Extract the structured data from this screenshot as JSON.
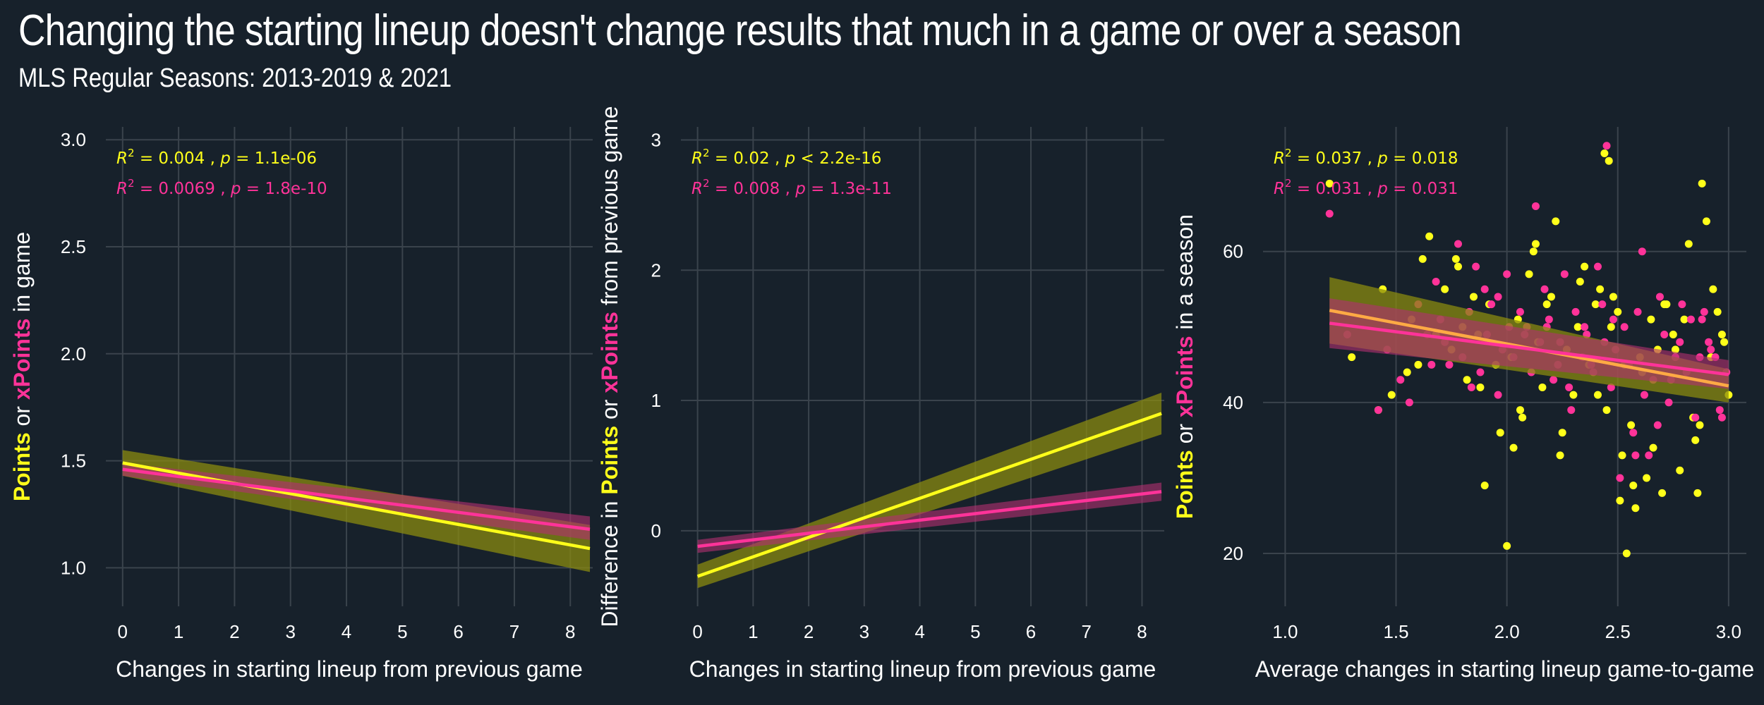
{
  "title": "Changing the starting lineup doesn't change results that much in a game or over a season",
  "subtitle": "MLS Regular Seasons: 2013-2019 & 2021",
  "colors": {
    "background": "#17212b",
    "grid": "#3a434c",
    "points": "#ffff1a",
    "xpoints": "#ff3399",
    "text": "#ffffff"
  },
  "chart_data": [
    {
      "type": "line",
      "xlabel": "Changes in starting lineup from previous game",
      "ylabel": {
        "part1": "Points",
        "part2": " or ",
        "part3": "xPoints",
        "part4": " in game"
      },
      "xlim": [
        -0.3,
        8.4
      ],
      "ylim": [
        0.82,
        3.06
      ],
      "xticks": [
        0,
        1,
        2,
        3,
        4,
        5,
        6,
        7,
        8
      ],
      "yticks": [
        1.0,
        1.5,
        2.0,
        2.5,
        3.0
      ],
      "ytick_labels": [
        "1.0",
        "1.5",
        "2.0",
        "2.5",
        "3.0"
      ],
      "annotations": [
        {
          "series": "points",
          "r2": "0.004",
          "p": "= 1.1e-06"
        },
        {
          "series": "xpoints",
          "r2": "0.0069",
          "p": "= 1.8e-10"
        }
      ],
      "series": [
        {
          "key": "points",
          "x": [
            0,
            8.35
          ],
          "y": [
            1.49,
            1.09
          ],
          "band_lower": [
            1.43,
            0.98
          ],
          "band_upper": [
            1.55,
            1.2
          ]
        },
        {
          "key": "xpoints",
          "x": [
            0,
            8.35
          ],
          "y": [
            1.46,
            1.18
          ],
          "band_lower": [
            1.43,
            1.13
          ],
          "band_upper": [
            1.49,
            1.24
          ]
        }
      ]
    },
    {
      "type": "line",
      "xlabel": "Changes in starting lineup from previous game",
      "ylabel": {
        "part1": "Difference in ",
        "part2": "Points",
        "part3": " or ",
        "part4": "xPoints",
        "part5": " from previous game"
      },
      "xlim": [
        -0.3,
        8.4
      ],
      "ylim": [
        -0.58,
        3.1
      ],
      "xticks": [
        0,
        1,
        2,
        3,
        4,
        5,
        6,
        7,
        8
      ],
      "yticks": [
        0,
        1,
        2,
        3
      ],
      "ytick_labels": [
        "0",
        "1",
        "2",
        "3"
      ],
      "annotations": [
        {
          "series": "points",
          "r2": "0.02",
          "p": "< 2.2e-16"
        },
        {
          "series": "xpoints",
          "r2": "0.008",
          "p": "= 1.3e-11"
        }
      ],
      "series": [
        {
          "key": "points",
          "x": [
            0,
            8.35
          ],
          "y": [
            -0.35,
            0.9
          ],
          "band_lower": [
            -0.44,
            0.74
          ],
          "band_upper": [
            -0.26,
            1.06
          ]
        },
        {
          "key": "xpoints",
          "x": [
            0,
            8.35
          ],
          "y": [
            -0.12,
            0.3
          ],
          "band_lower": [
            -0.17,
            0.23
          ],
          "band_upper": [
            -0.07,
            0.37
          ]
        }
      ]
    },
    {
      "type": "scatter",
      "xlabel": "Average changes in starting lineup game-to-game",
      "ylabel": {
        "part1": "Points",
        "part2": " or ",
        "part3": "xPoints",
        "part4": " in a season"
      },
      "xlim": [
        0.9,
        3.08
      ],
      "ylim": [
        13,
        76.5
      ],
      "xticks": [
        1.0,
        1.5,
        2.0,
        2.5,
        3.0
      ],
      "xtick_labels": [
        "1.0",
        "1.5",
        "2.0",
        "2.5",
        "3.0"
      ],
      "yticks": [
        20,
        40,
        60
      ],
      "ytick_labels": [
        "20",
        "40",
        "60"
      ],
      "annotations": [
        {
          "series": "points",
          "r2": "0.037",
          "p": "= 0.018"
        },
        {
          "series": "xpoints",
          "r2": "0.031",
          "p": "= 0.031"
        }
      ],
      "series": [
        {
          "key": "points",
          "x": [
            1.2,
            1.3,
            1.42,
            1.44,
            1.48,
            1.55,
            1.57,
            1.62,
            1.65,
            1.68,
            1.72,
            1.75,
            1.78,
            1.8,
            1.82,
            1.85,
            1.87,
            1.9,
            1.92,
            1.95,
            1.97,
            2.0,
            2.02,
            2.05,
            2.07,
            2.1,
            2.12,
            2.14,
            2.16,
            2.18,
            2.2,
            2.22,
            2.25,
            2.27,
            2.3,
            2.32,
            2.35,
            2.37,
            2.4,
            2.42,
            2.44,
            2.46,
            2.48,
            2.5,
            2.52,
            2.54,
            2.56,
            2.58,
            2.6,
            2.63,
            2.65,
            2.68,
            2.7,
            2.72,
            2.75,
            2.78,
            2.8,
            2.82,
            2.84,
            2.86,
            2.88,
            2.9,
            2.92,
            2.95,
            2.98,
            3.0,
            1.88,
            2.03,
            2.13,
            2.33,
            2.45,
            2.47,
            2.53,
            2.57,
            2.66,
            2.76,
            2.87,
            2.93,
            1.6,
            1.77,
            2.06,
            2.24,
            2.41,
            2.51,
            2.61,
            2.71,
            2.85,
            2.97
          ],
          "y": [
            69,
            46,
            39,
            55,
            41,
            44,
            51,
            59,
            62,
            49,
            55,
            47,
            58,
            50,
            43,
            54,
            49,
            29,
            53,
            45,
            36,
            21,
            46,
            51,
            38,
            57,
            60,
            48,
            42,
            53,
            54,
            64,
            36,
            47,
            41,
            50,
            58,
            45,
            53,
            55,
            73,
            72,
            54,
            52,
            33,
            20,
            37,
            26,
            46,
            30,
            51,
            47,
            28,
            53,
            49,
            31,
            51,
            61,
            38,
            28,
            69,
            64,
            46,
            52,
            48,
            41,
            42,
            34,
            61,
            56,
            39,
            50,
            45,
            29,
            34,
            47,
            37,
            55,
            45,
            59,
            39,
            33,
            41,
            27,
            44,
            53,
            35,
            49
          ]
        },
        {
          "key": "xpoints",
          "x": [
            1.2,
            1.28,
            1.42,
            1.46,
            1.52,
            1.56,
            1.6,
            1.64,
            1.68,
            1.7,
            1.74,
            1.78,
            1.8,
            1.83,
            1.86,
            1.88,
            1.91,
            1.93,
            1.96,
            1.98,
            2.01,
            2.03,
            2.06,
            2.08,
            2.11,
            2.13,
            2.15,
            2.17,
            2.19,
            2.21,
            2.24,
            2.26,
            2.29,
            2.31,
            2.34,
            2.36,
            2.39,
            2.41,
            2.43,
            2.45,
            2.47,
            2.49,
            2.51,
            2.53,
            2.55,
            2.57,
            2.59,
            2.61,
            2.64,
            2.66,
            2.69,
            2.71,
            2.73,
            2.76,
            2.79,
            2.81,
            2.83,
            2.85,
            2.87,
            2.89,
            2.91,
            2.94,
            2.96,
            2.99,
            1.72,
            1.9,
            2.0,
            2.18,
            2.28,
            2.38,
            2.48,
            2.58,
            2.68,
            2.78,
            2.88,
            2.97,
            1.84,
            2.09,
            2.23,
            2.44,
            2.62,
            2.74,
            2.92,
            1.66,
            1.96,
            2.35
          ],
          "y": [
            65,
            49,
            39,
            47,
            43,
            40,
            53,
            49,
            56,
            51,
            45,
            61,
            46,
            52,
            58,
            44,
            49,
            53,
            54,
            47,
            50,
            46,
            52,
            49,
            44,
            66,
            48,
            55,
            51,
            43,
            48,
            57,
            39,
            52,
            46,
            49,
            44,
            58,
            53,
            74,
            42,
            47,
            30,
            50,
            45,
            36,
            52,
            60,
            33,
            43,
            54,
            49,
            40,
            46,
            53,
            44,
            51,
            38,
            46,
            52,
            48,
            46,
            39,
            44,
            48,
            55,
            57,
            50,
            42,
            45,
            51,
            33,
            37,
            48,
            51,
            38,
            42,
            50,
            45,
            48,
            41,
            43,
            47,
            45,
            41,
            50
          ]
        },
        {
          "key": "points_fit",
          "x": [
            1.2,
            3.0
          ],
          "y": [
            52.2,
            42.2
          ],
          "band_lower": [
            47.8,
            40.0
          ],
          "band_upper": [
            56.6,
            44.4
          ]
        },
        {
          "key": "xpoints_fit",
          "x": [
            1.2,
            3.0
          ],
          "y": [
            50.5,
            43.7
          ],
          "band_lower": [
            47.2,
            41.8
          ],
          "band_upper": [
            53.8,
            45.6
          ]
        }
      ]
    }
  ]
}
